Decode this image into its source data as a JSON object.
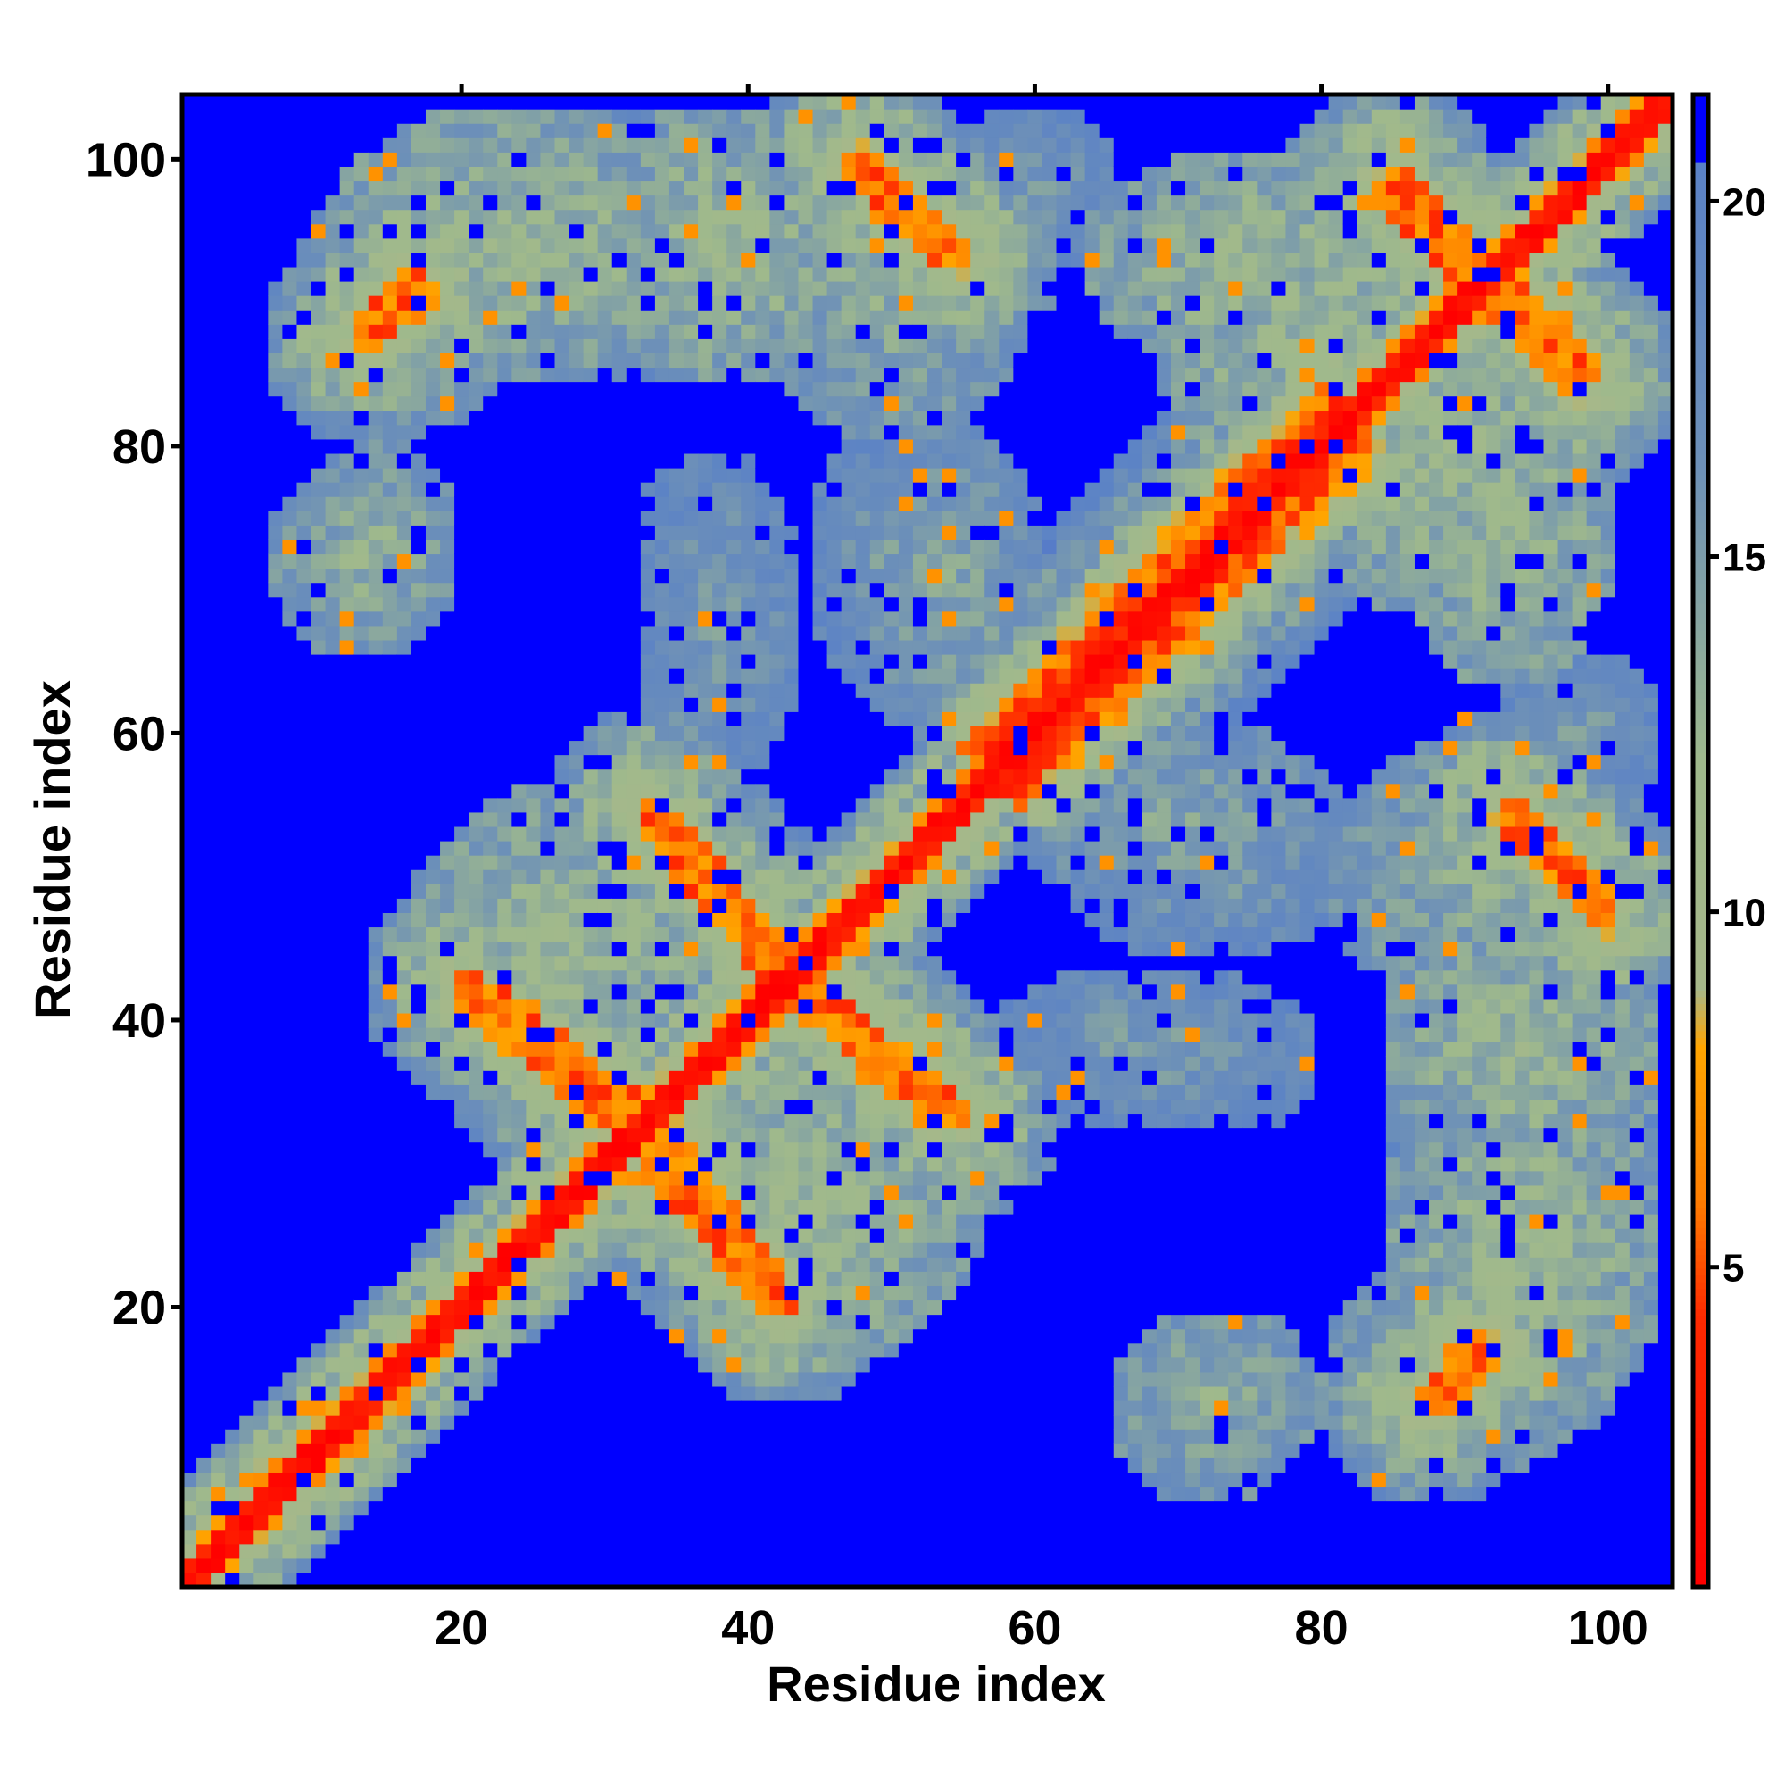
{
  "chart_data": {
    "type": "heatmap",
    "title": "",
    "xlabel": "Residue index",
    "ylabel": "Residue index",
    "n_residues": 104,
    "xlim": [
      1,
      104
    ],
    "ylim": [
      1,
      104
    ],
    "x_ticks": [
      20,
      40,
      60,
      80,
      100
    ],
    "y_ticks": [
      20,
      40,
      60,
      80,
      100
    ],
    "x_tick_labels": [
      "20",
      "40",
      "60",
      "80",
      "100"
    ],
    "y_tick_labels": [
      "20",
      "40",
      "60",
      "80",
      "100"
    ],
    "colorbar": {
      "range": [
        0.5,
        21.5
      ],
      "ticks": [
        5,
        10,
        15,
        20
      ],
      "tick_labels": [
        "5",
        "10",
        "15",
        "20"
      ],
      "colors": [
        {
          "stop": 0.0,
          "color": "#ff0000"
        },
        {
          "stop": 0.18,
          "color": "#ff2a00"
        },
        {
          "stop": 0.26,
          "color": "#ff7f00"
        },
        {
          "stop": 0.36,
          "color": "#ffa500"
        },
        {
          "stop": 0.4,
          "color": "#a6b88a"
        },
        {
          "stop": 0.55,
          "color": "#9fb98c"
        },
        {
          "stop": 0.75,
          "color": "#6d90b8"
        },
        {
          "stop": 0.95,
          "color": "#5b82c6"
        },
        {
          "stop": 1.0,
          "color": "#0000ff"
        }
      ],
      "saturated_color": "#0000ff"
    },
    "structure": {
      "description_free": true,
      "diagonal_band": {
        "width": 1.2,
        "value_center": 1.5
      },
      "helix_segment": {
        "from": 57,
        "to": 82,
        "value_near": 6.5
      },
      "contact_arms": [
        {
          "from": [
            33,
            55
          ],
          "to": [
            45,
            42
          ],
          "value": 6
        },
        {
          "from": [
            20,
            43
          ],
          "to": [
            32,
            34
          ],
          "value": 6
        },
        {
          "from": [
            43,
            42
          ],
          "to": [
            54,
            33
          ],
          "value": 6
        },
        {
          "from": [
            33,
            30
          ],
          "to": [
            42,
            20
          ],
          "value": 6
        },
        {
          "from": [
            48,
            100
          ],
          "to": [
            55,
            93
          ],
          "value": 6
        },
        {
          "from": [
            85,
            99
          ],
          "to": [
            92,
            92
          ],
          "value": 6
        },
        {
          "from": [
            90,
            92
          ],
          "to": [
            98,
            84
          ],
          "value": 6
        },
        {
          "from": [
            93,
            54
          ],
          "to": [
            100,
            47
          ],
          "value": 6
        },
        {
          "from": [
            13,
            88
          ],
          "to": [
            17,
            92
          ],
          "value": 6
        },
        {
          "from": [
            87,
            13
          ],
          "to": [
            91,
            18
          ],
          "value": 6
        }
      ],
      "contact_blobs": [
        {
          "cx": 24,
          "cy": 94,
          "rx": 14,
          "ry": 10,
          "value": 12
        },
        {
          "cx": 38,
          "cy": 94,
          "rx": 10,
          "ry": 10,
          "value": 12
        },
        {
          "cx": 13,
          "cy": 72,
          "rx": 7,
          "ry": 7,
          "value": 13
        },
        {
          "cx": 27,
          "cy": 44,
          "rx": 12,
          "ry": 12,
          "value": 12
        },
        {
          "cx": 45,
          "cy": 28,
          "rx": 12,
          "ry": 12,
          "value": 12
        },
        {
          "cx": 38,
          "cy": 68,
          "rx": 6,
          "ry": 12,
          "value": 15
        },
        {
          "cx": 54,
          "cy": 70,
          "rx": 7,
          "ry": 12,
          "value": 14
        },
        {
          "cx": 73,
          "cy": 14,
          "rx": 8,
          "ry": 6,
          "value": 13
        },
        {
          "cx": 90,
          "cy": 16,
          "rx": 10,
          "ry": 8,
          "value": 13
        },
        {
          "cx": 92,
          "cy": 50,
          "rx": 12,
          "ry": 10,
          "value": 13
        },
        {
          "cx": 94,
          "cy": 34,
          "rx": 10,
          "ry": 12,
          "value": 15
        },
        {
          "cx": 88,
          "cy": 80,
          "rx": 12,
          "ry": 12,
          "value": 12
        },
        {
          "cx": 75,
          "cy": 93,
          "rx": 12,
          "ry": 8,
          "value": 12
        },
        {
          "cx": 72,
          "cy": 50,
          "rx": 10,
          "ry": 6,
          "value": 15
        },
        {
          "cx": 72,
          "cy": 36,
          "rx": 8,
          "ry": 4,
          "value": 16
        },
        {
          "cx": 60,
          "cy": 98,
          "rx": 6,
          "ry": 6,
          "value": 15
        }
      ]
    }
  }
}
